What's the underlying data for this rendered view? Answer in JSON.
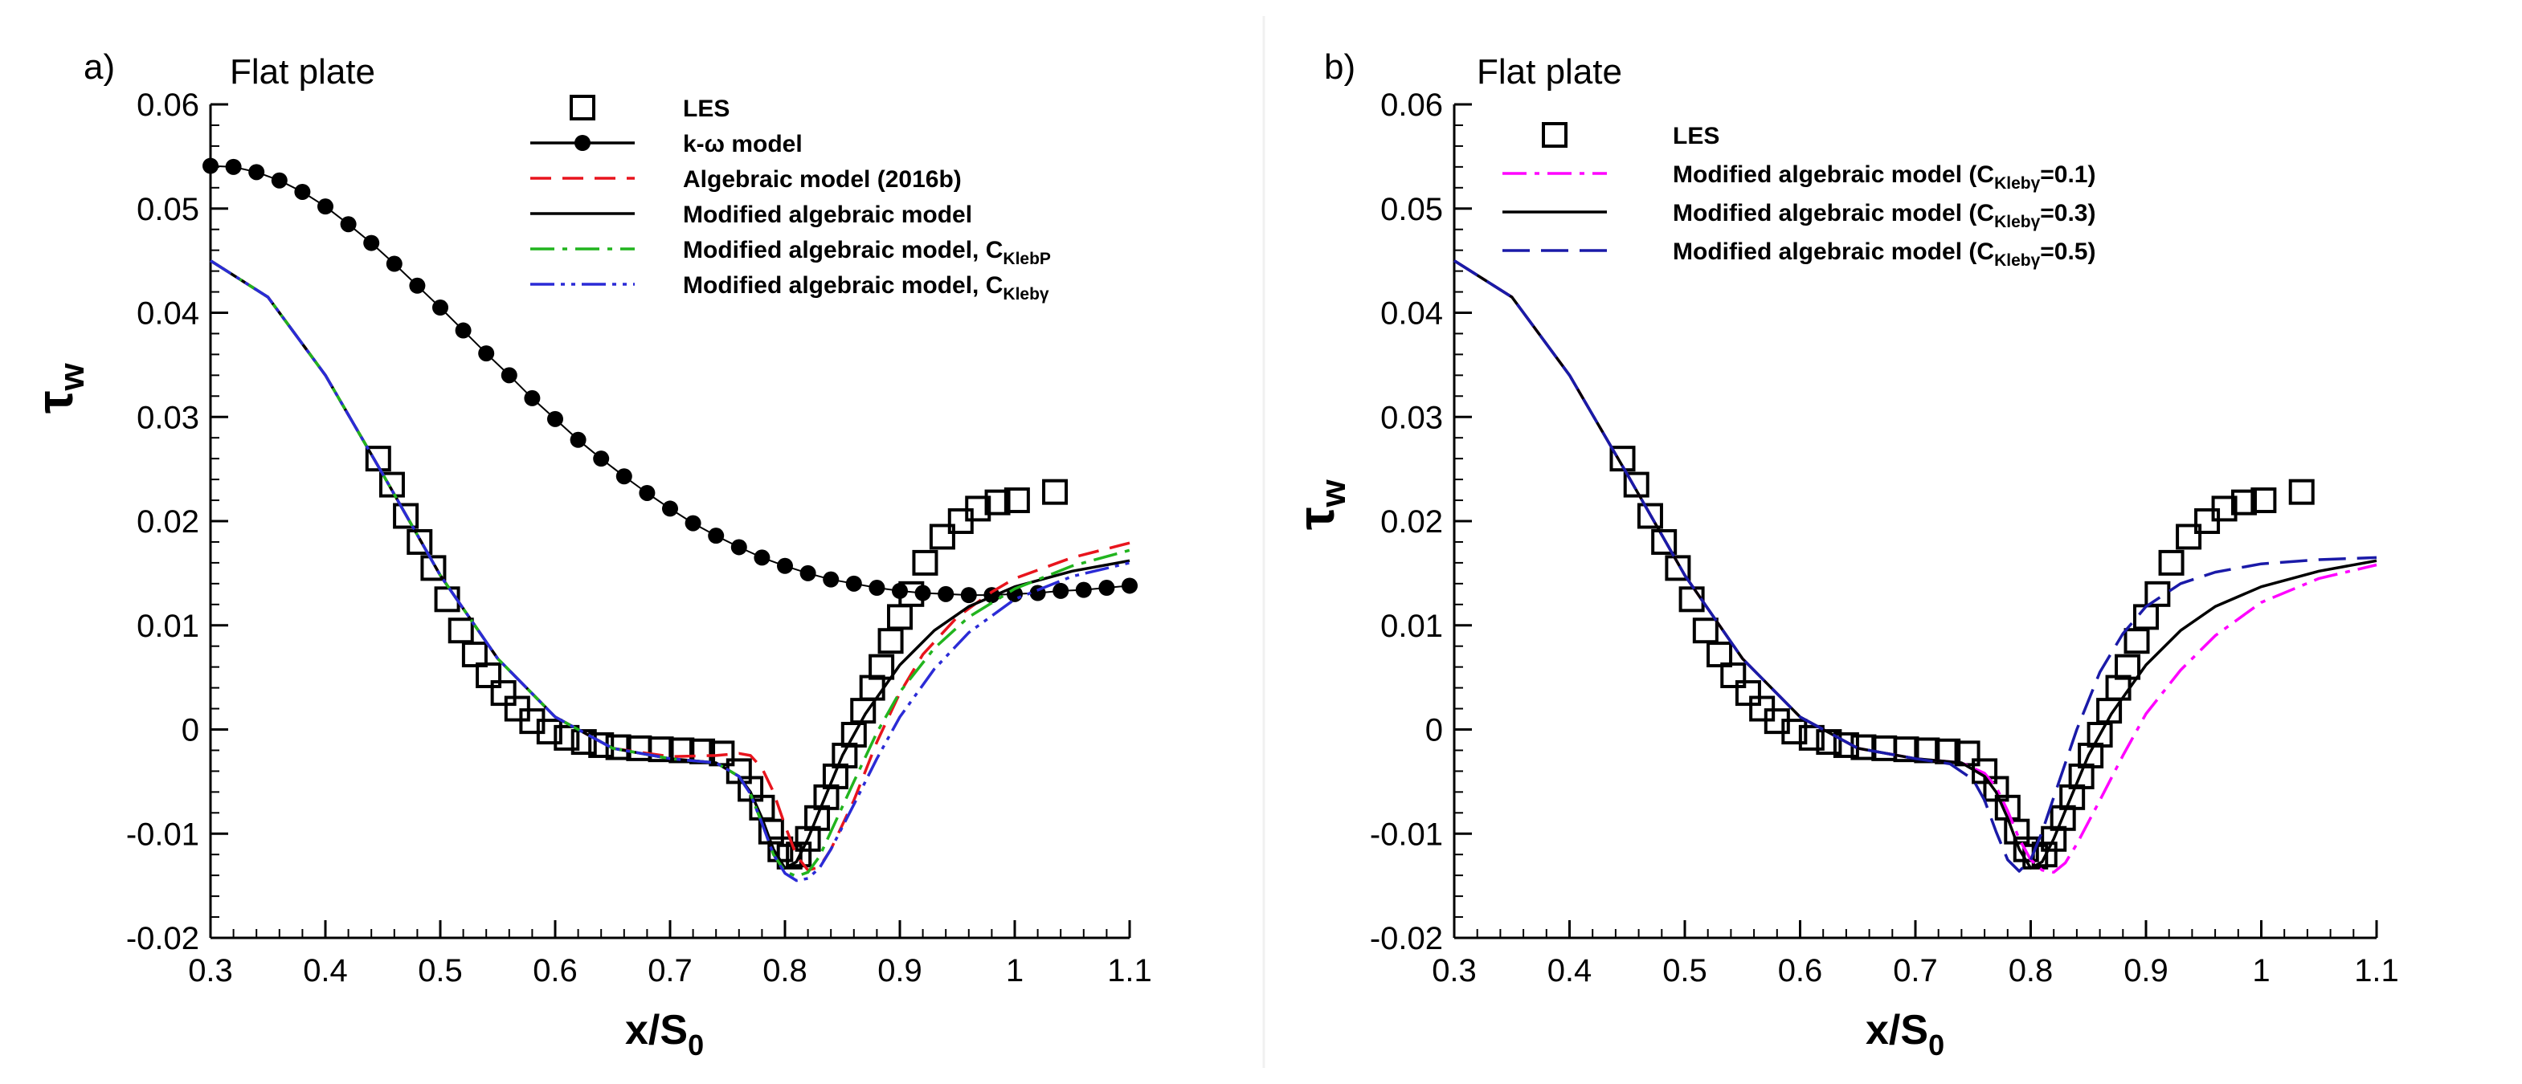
{
  "chart_data": [
    {
      "panel_label": "a)",
      "title": "Flat plate",
      "type": "line",
      "xlabel": "x/S",
      "xlabel_sub": "0",
      "ylabel": "τ",
      "ylabel_sub": "w",
      "xlim": [
        0.3,
        1.1
      ],
      "ylim": [
        -0.02,
        0.06
      ],
      "xticks": [
        0.3,
        0.4,
        0.5,
        0.6,
        0.7,
        0.8,
        0.9,
        1.0,
        1.1
      ],
      "xtick_labels": [
        "0.3",
        "0.4",
        "0.5",
        "0.6",
        "0.7",
        "0.8",
        "0.9",
        "1",
        "1.1"
      ],
      "yticks": [
        -0.02,
        -0.01,
        0,
        0.01,
        0.02,
        0.03,
        0.04,
        0.05,
        0.06
      ],
      "ytick_labels": [
        "-0.02",
        "-0.01",
        "0",
        "0.01",
        "0.02",
        "0.03",
        "0.04",
        "0.05",
        "0.06"
      ],
      "legend_position": "top-right",
      "series": [
        {
          "name": "LES",
          "legend_label": "LES",
          "style": "markers-square",
          "color": "#000000",
          "x": [
            0.446,
            0.458,
            0.47,
            0.482,
            0.494,
            0.506,
            0.518,
            0.53,
            0.542,
            0.555,
            0.567,
            0.58,
            0.595,
            0.61,
            0.625,
            0.64,
            0.655,
            0.673,
            0.692,
            0.71,
            0.728,
            0.745,
            0.76,
            0.77,
            0.78,
            0.788,
            0.796,
            0.804,
            0.812,
            0.82,
            0.828,
            0.836,
            0.844,
            0.852,
            0.86,
            0.868,
            0.876,
            0.884,
            0.892,
            0.9,
            0.91,
            0.922,
            0.937,
            0.953,
            0.968,
            0.985,
            1.002,
            1.035
          ],
          "y": [
            0.026,
            0.0235,
            0.0205,
            0.018,
            0.0155,
            0.0125,
            0.0095,
            0.0072,
            0.0052,
            0.0035,
            0.002,
            0.0008,
            -0.0002,
            -0.0008,
            -0.0012,
            -0.0015,
            -0.0017,
            -0.0018,
            -0.0019,
            -0.002,
            -0.0021,
            -0.0023,
            -0.004,
            -0.0057,
            -0.0075,
            -0.0098,
            -0.0115,
            -0.0122,
            -0.012,
            -0.0105,
            -0.0085,
            -0.0065,
            -0.0045,
            -0.0025,
            -0.0005,
            0.0018,
            0.004,
            0.006,
            0.0085,
            0.0108,
            0.013,
            0.016,
            0.0185,
            0.02,
            0.0212,
            0.0218,
            0.022,
            0.0228
          ]
        },
        {
          "name": "k-omega model",
          "legend_label": "k-ω model",
          "style": "solid-circles",
          "color": "#000000",
          "x": [
            0.3,
            0.32,
            0.34,
            0.36,
            0.38,
            0.4,
            0.42,
            0.44,
            0.46,
            0.48,
            0.5,
            0.52,
            0.54,
            0.56,
            0.58,
            0.6,
            0.62,
            0.64,
            0.66,
            0.68,
            0.7,
            0.72,
            0.74,
            0.76,
            0.78,
            0.8,
            0.82,
            0.84,
            0.86,
            0.88,
            0.9,
            0.92,
            0.94,
            0.96,
            0.98,
            1.0,
            1.02,
            1.04,
            1.06,
            1.08,
            1.1
          ],
          "y": [
            0.0541,
            0.054,
            0.0535,
            0.0527,
            0.0516,
            0.0502,
            0.0485,
            0.0467,
            0.0447,
            0.0426,
            0.0405,
            0.0383,
            0.0361,
            0.034,
            0.0318,
            0.0298,
            0.0278,
            0.026,
            0.0243,
            0.0227,
            0.0212,
            0.0198,
            0.0186,
            0.0175,
            0.0165,
            0.0157,
            0.015,
            0.0144,
            0.014,
            0.0136,
            0.0133,
            0.0131,
            0.013,
            0.0129,
            0.0129,
            0.013,
            0.0131,
            0.0133,
            0.0134,
            0.0136,
            0.0138
          ]
        },
        {
          "name": "Algebraic model (2016b)",
          "legend_label": "Algebraic model (2016b)",
          "style": "dashed",
          "color": "#e8141d",
          "x": [
            0.3,
            0.35,
            0.4,
            0.45,
            0.5,
            0.55,
            0.6,
            0.65,
            0.7,
            0.74,
            0.76,
            0.77,
            0.78,
            0.79,
            0.8,
            0.81,
            0.82,
            0.83,
            0.84,
            0.86,
            0.88,
            0.9,
            0.92,
            0.95,
            0.98,
            1.0,
            1.05,
            1.1
          ],
          "y": [
            0.045,
            0.0415,
            0.034,
            0.0245,
            0.0148,
            0.0068,
            0.0012,
            -0.0018,
            -0.0026,
            -0.0025,
            -0.0023,
            -0.0025,
            -0.0037,
            -0.006,
            -0.0092,
            -0.0121,
            -0.0135,
            -0.0132,
            -0.0115,
            -0.0068,
            -0.0012,
            0.0035,
            0.0072,
            0.0108,
            0.0132,
            0.0145,
            0.0165,
            0.0179
          ]
        },
        {
          "name": "Modified algebraic model",
          "legend_label": "Modified algebraic model",
          "style": "solid",
          "color": "#000000",
          "x": [
            0.3,
            0.35,
            0.4,
            0.45,
            0.5,
            0.55,
            0.6,
            0.65,
            0.7,
            0.74,
            0.76,
            0.77,
            0.78,
            0.79,
            0.8,
            0.81,
            0.82,
            0.83,
            0.85,
            0.87,
            0.9,
            0.93,
            0.96,
            1.0,
            1.05,
            1.1
          ],
          "y": [
            0.045,
            0.0415,
            0.034,
            0.0245,
            0.0148,
            0.0068,
            0.0012,
            -0.0018,
            -0.0028,
            -0.0032,
            -0.0045,
            -0.006,
            -0.0085,
            -0.0115,
            -0.0133,
            -0.0127,
            -0.0105,
            -0.0078,
            -0.0025,
            0.0015,
            0.0062,
            0.0095,
            0.0118,
            0.0137,
            0.0152,
            0.0162
          ]
        },
        {
          "name": "Modified algebraic model, C_KlebP",
          "legend_label": "Modified algebraic model, C",
          "legend_sub": "KlebP",
          "style": "dashdot",
          "color": "#21b41e",
          "x": [
            0.3,
            0.35,
            0.4,
            0.45,
            0.5,
            0.55,
            0.6,
            0.65,
            0.7,
            0.74,
            0.76,
            0.77,
            0.78,
            0.79,
            0.8,
            0.81,
            0.82,
            0.83,
            0.84,
            0.86,
            0.88,
            0.9,
            0.93,
            0.96,
            1.0,
            1.05,
            1.1
          ],
          "y": [
            0.045,
            0.0415,
            0.034,
            0.0245,
            0.0148,
            0.0068,
            0.0012,
            -0.0018,
            -0.0028,
            -0.0032,
            -0.0045,
            -0.0062,
            -0.009,
            -0.012,
            -0.0136,
            -0.0141,
            -0.0137,
            -0.0122,
            -0.0098,
            -0.005,
            -0.0003,
            0.0036,
            0.0078,
            0.0108,
            0.0135,
            0.0157,
            0.0172
          ]
        },
        {
          "name": "Modified algebraic model, C_Klebgamma",
          "legend_label": "Modified algebraic model, C",
          "legend_sub": "Klebγ",
          "style": "dashdotdot",
          "color": "#2b2bd6",
          "x": [
            0.3,
            0.35,
            0.4,
            0.45,
            0.5,
            0.55,
            0.6,
            0.65,
            0.7,
            0.74,
            0.76,
            0.77,
            0.78,
            0.79,
            0.8,
            0.81,
            0.82,
            0.83,
            0.84,
            0.86,
            0.88,
            0.9,
            0.93,
            0.96,
            1.0,
            1.05,
            1.1
          ],
          "y": [
            0.045,
            0.0415,
            0.034,
            0.0245,
            0.0148,
            0.0068,
            0.0012,
            -0.0018,
            -0.0028,
            -0.0032,
            -0.0045,
            -0.0062,
            -0.009,
            -0.012,
            -0.0138,
            -0.0145,
            -0.0143,
            -0.0133,
            -0.0115,
            -0.0072,
            -0.0028,
            0.0012,
            0.0058,
            0.0093,
            0.0125,
            0.0147,
            0.016
          ]
        }
      ]
    },
    {
      "panel_label": "b)",
      "title": "Flat plate",
      "type": "line",
      "xlabel": "x/S",
      "xlabel_sub": "0",
      "ylabel": "τ",
      "ylabel_sub": "w",
      "xlim": [
        0.3,
        1.1
      ],
      "ylim": [
        -0.02,
        0.06
      ],
      "xticks": [
        0.3,
        0.4,
        0.5,
        0.6,
        0.7,
        0.8,
        0.9,
        1.0,
        1.1
      ],
      "xtick_labels": [
        "0.3",
        "0.4",
        "0.5",
        "0.6",
        "0.7",
        "0.8",
        "0.9",
        "1",
        "1.1"
      ],
      "yticks": [
        -0.02,
        -0.01,
        0,
        0.01,
        0.02,
        0.03,
        0.04,
        0.05,
        0.06
      ],
      "ytick_labels": [
        "-0.02",
        "-0.01",
        "0",
        "0.01",
        "0.02",
        "0.03",
        "0.04",
        "0.05",
        "0.06"
      ],
      "legend_position": "top-right",
      "series": [
        {
          "name": "LES",
          "legend_label": "LES",
          "style": "markers-square",
          "color": "#000000",
          "x": [
            0.446,
            0.458,
            0.47,
            0.482,
            0.494,
            0.506,
            0.518,
            0.53,
            0.542,
            0.555,
            0.567,
            0.58,
            0.595,
            0.61,
            0.625,
            0.64,
            0.655,
            0.673,
            0.692,
            0.71,
            0.728,
            0.745,
            0.76,
            0.77,
            0.78,
            0.788,
            0.796,
            0.804,
            0.812,
            0.82,
            0.828,
            0.836,
            0.844,
            0.852,
            0.86,
            0.868,
            0.876,
            0.884,
            0.892,
            0.9,
            0.91,
            0.922,
            0.937,
            0.953,
            0.968,
            0.985,
            1.002,
            1.035
          ],
          "y": [
            0.026,
            0.0235,
            0.0205,
            0.018,
            0.0155,
            0.0125,
            0.0095,
            0.0072,
            0.0052,
            0.0035,
            0.002,
            0.0008,
            -0.0002,
            -0.0008,
            -0.0012,
            -0.0015,
            -0.0017,
            -0.0018,
            -0.0019,
            -0.002,
            -0.0021,
            -0.0023,
            -0.004,
            -0.0057,
            -0.0075,
            -0.0098,
            -0.0115,
            -0.0122,
            -0.012,
            -0.0105,
            -0.0085,
            -0.0065,
            -0.0045,
            -0.0025,
            -0.0005,
            0.0018,
            0.004,
            0.006,
            0.0085,
            0.0108,
            0.013,
            0.016,
            0.0185,
            0.02,
            0.0212,
            0.0218,
            0.022,
            0.0228
          ]
        },
        {
          "name": "Modified algebraic model (C_Klebgamma=0.1)",
          "legend_label": "Modified algebraic model (C",
          "legend_sub": "Klebγ",
          "legend_suffix": "=0.1)",
          "style": "dashdot",
          "color": "#ff00ff",
          "x": [
            0.3,
            0.35,
            0.4,
            0.45,
            0.5,
            0.55,
            0.6,
            0.65,
            0.7,
            0.74,
            0.76,
            0.77,
            0.78,
            0.79,
            0.8,
            0.81,
            0.82,
            0.83,
            0.84,
            0.86,
            0.88,
            0.9,
            0.93,
            0.96,
            1.0,
            1.05,
            1.1
          ],
          "y": [
            0.045,
            0.0415,
            0.034,
            0.0245,
            0.0148,
            0.0068,
            0.0012,
            -0.0018,
            -0.0028,
            -0.0032,
            -0.0042,
            -0.0055,
            -0.0078,
            -0.0105,
            -0.0125,
            -0.0135,
            -0.0137,
            -0.0128,
            -0.011,
            -0.0068,
            -0.0025,
            0.0015,
            0.0057,
            0.009,
            0.0122,
            0.0145,
            0.0158
          ]
        },
        {
          "name": "Modified algebraic model (C_Klebgamma=0.3)",
          "legend_label": "Modified algebraic model (C",
          "legend_sub": "Klebγ",
          "legend_suffix": "=0.3)",
          "style": "solid",
          "color": "#000000",
          "x": [
            0.3,
            0.35,
            0.4,
            0.45,
            0.5,
            0.55,
            0.6,
            0.65,
            0.7,
            0.74,
            0.76,
            0.77,
            0.78,
            0.79,
            0.8,
            0.81,
            0.82,
            0.83,
            0.85,
            0.87,
            0.9,
            0.93,
            0.96,
            1.0,
            1.05,
            1.1
          ],
          "y": [
            0.045,
            0.0415,
            0.034,
            0.0245,
            0.0148,
            0.0068,
            0.0012,
            -0.0018,
            -0.0028,
            -0.0032,
            -0.0045,
            -0.006,
            -0.0085,
            -0.0115,
            -0.0133,
            -0.0127,
            -0.0105,
            -0.0078,
            -0.0025,
            0.0015,
            0.0062,
            0.0095,
            0.0118,
            0.0137,
            0.0152,
            0.0162
          ]
        },
        {
          "name": "Modified algebraic model (C_Klebgamma=0.5)",
          "legend_label": "Modified algebraic model (C",
          "legend_sub": "Klebγ",
          "legend_suffix": "=0.5)",
          "style": "longdash",
          "color": "#1a1aa8",
          "x": [
            0.3,
            0.35,
            0.4,
            0.45,
            0.5,
            0.55,
            0.6,
            0.65,
            0.7,
            0.73,
            0.75,
            0.76,
            0.77,
            0.78,
            0.79,
            0.8,
            0.81,
            0.82,
            0.84,
            0.86,
            0.88,
            0.9,
            0.93,
            0.96,
            1.0,
            1.05,
            1.1
          ],
          "y": [
            0.045,
            0.0415,
            0.034,
            0.0245,
            0.0148,
            0.0068,
            0.0012,
            -0.0018,
            -0.0028,
            -0.0033,
            -0.0048,
            -0.0068,
            -0.0098,
            -0.0125,
            -0.0136,
            -0.0125,
            -0.0098,
            -0.0065,
            0.0,
            0.0055,
            0.0092,
            0.0118,
            0.014,
            0.0151,
            0.0159,
            0.0163,
            0.0165
          ]
        }
      ]
    }
  ]
}
